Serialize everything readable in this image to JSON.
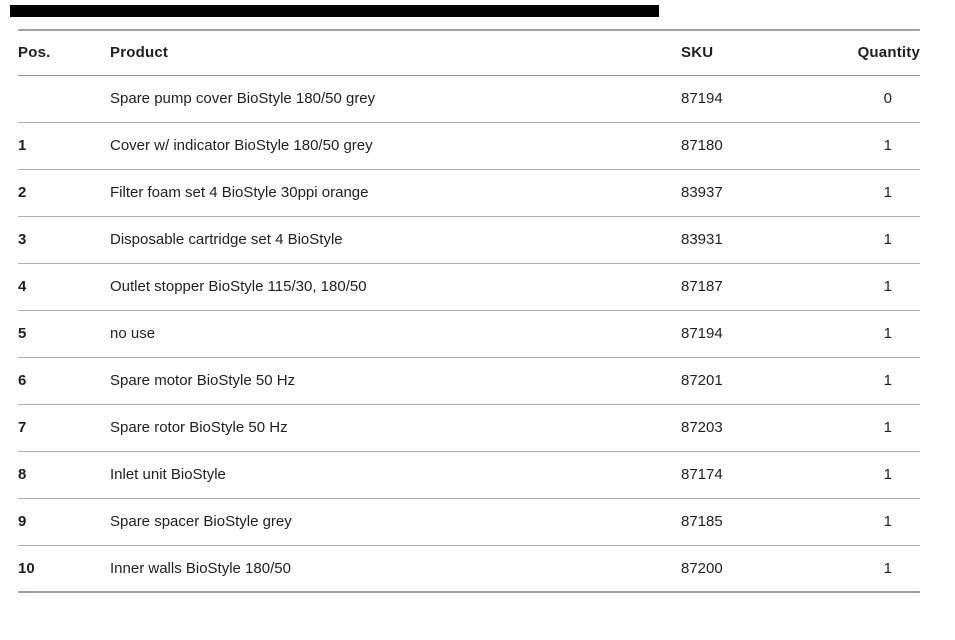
{
  "page": {
    "background": "#ffffff"
  },
  "top_bar": {
    "color": "#000000"
  },
  "colors": {
    "text": "#1d1f20",
    "outer_line": "#99a4aa",
    "header_line": "#8e989e",
    "row_line": "#a9b1b6"
  },
  "table": {
    "columns": [
      {
        "key": "pos",
        "label": "Pos."
      },
      {
        "key": "product",
        "label": "Product"
      },
      {
        "key": "sku",
        "label": "SKU"
      },
      {
        "key": "quantity",
        "label": "Quantity"
      }
    ],
    "rows": [
      {
        "pos": "",
        "product": "Spare pump cover BioStyle 180/50 grey",
        "sku": "87194",
        "quantity": "0"
      },
      {
        "pos": "1",
        "product": "Cover w/ indicator BioStyle 180/50 grey",
        "sku": "87180",
        "quantity": "1"
      },
      {
        "pos": "2",
        "product": "Filter foam set 4 BioStyle 30ppi orange",
        "sku": "83937",
        "quantity": "1"
      },
      {
        "pos": "3",
        "product": "Disposable cartridge set 4 BioStyle",
        "sku": "83931",
        "quantity": "1"
      },
      {
        "pos": "4",
        "product": "Outlet stopper BioStyle 115/30, 180/50",
        "sku": "87187",
        "quantity": "1"
      },
      {
        "pos": "5",
        "product": "no use",
        "sku": "87194",
        "quantity": "1"
      },
      {
        "pos": "6",
        "product": "Spare motor BioStyle 50 Hz",
        "sku": "87201",
        "quantity": "1"
      },
      {
        "pos": "7",
        "product": "Spare rotor BioStyle 50 Hz",
        "sku": "87203",
        "quantity": "1"
      },
      {
        "pos": "8",
        "product": "Inlet unit BioStyle",
        "sku": "87174",
        "quantity": "1"
      },
      {
        "pos": "9",
        "product": "Spare spacer BioStyle grey",
        "sku": "87185",
        "quantity": "1"
      },
      {
        "pos": "10",
        "product": "Inner walls BioStyle 180/50",
        "sku": "87200",
        "quantity": "1"
      }
    ]
  }
}
